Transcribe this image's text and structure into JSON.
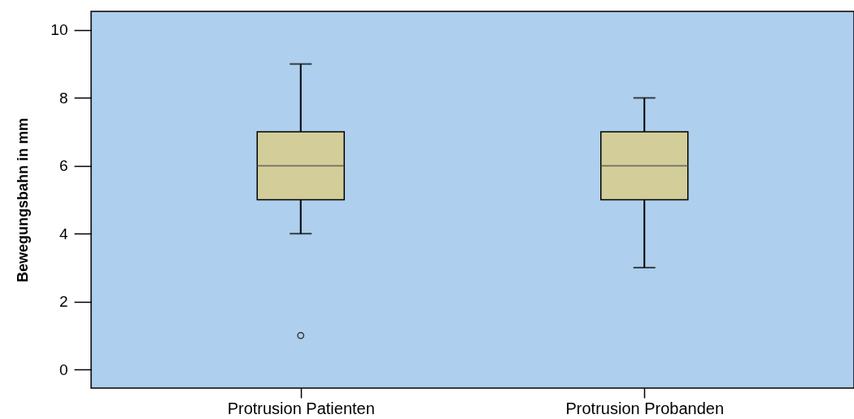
{
  "chart_data": {
    "type": "box",
    "ylabel": "Bewegungsbahn in mm",
    "categories": [
      "Protrusion Patienten",
      "Protrusion Probanden"
    ],
    "boxes": [
      {
        "low": 4,
        "q1": 5,
        "median": 6,
        "q3": 7,
        "high": 9,
        "outliers": [
          1
        ]
      },
      {
        "low": 3,
        "q1": 5,
        "median": 6,
        "q3": 7,
        "high": 8
      }
    ],
    "color": "#d3ce99",
    "ylim": [
      -0.55,
      10.55
    ],
    "yticks": [
      0,
      2,
      4,
      6,
      8,
      10
    ],
    "grid": false
  }
}
